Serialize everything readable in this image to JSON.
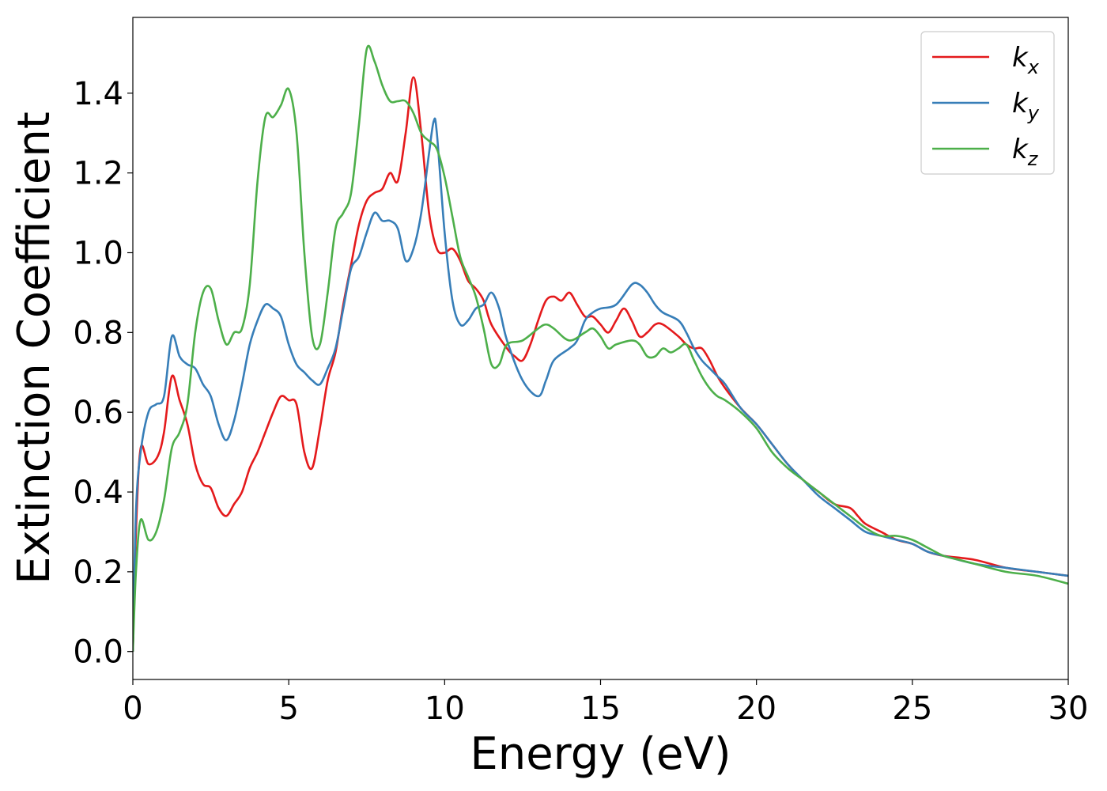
{
  "chart_data": {
    "type": "line",
    "title": "",
    "xlabel": "Energy (eV)",
    "ylabel": "Extinction Coefficient",
    "xlim": [
      0,
      30
    ],
    "ylim": [
      -0.07,
      1.59
    ],
    "xticks": [
      0,
      5,
      10,
      15,
      20,
      25,
      30
    ],
    "yticks": [
      0.0,
      0.2,
      0.4,
      0.6,
      0.8,
      1.0,
      1.2,
      1.4
    ],
    "xtick_labels": [
      "0",
      "5",
      "10",
      "15",
      "20",
      "25",
      "30"
    ],
    "ytick_labels": [
      "0.0",
      "0.2",
      "0.4",
      "0.6",
      "0.8",
      "1.0",
      "1.2",
      "1.4"
    ],
    "grid": false,
    "legend_position": "top-right",
    "series": [
      {
        "name": "k_x",
        "label_base": "k",
        "label_sub": "x",
        "color": "#e41a1c",
        "points": [
          [
            0,
            0
          ],
          [
            0.1,
            0.3
          ],
          [
            0.25,
            0.51
          ],
          [
            0.5,
            0.47
          ],
          [
            0.8,
            0.49
          ],
          [
            1.0,
            0.55
          ],
          [
            1.25,
            0.69
          ],
          [
            1.5,
            0.63
          ],
          [
            1.75,
            0.57
          ],
          [
            2.0,
            0.47
          ],
          [
            2.25,
            0.42
          ],
          [
            2.5,
            0.41
          ],
          [
            2.75,
            0.36
          ],
          [
            3.0,
            0.34
          ],
          [
            3.25,
            0.37
          ],
          [
            3.5,
            0.4
          ],
          [
            3.75,
            0.46
          ],
          [
            4.0,
            0.5
          ],
          [
            4.25,
            0.55
          ],
          [
            4.5,
            0.6
          ],
          [
            4.75,
            0.64
          ],
          [
            5.0,
            0.63
          ],
          [
            5.25,
            0.62
          ],
          [
            5.5,
            0.5
          ],
          [
            5.75,
            0.46
          ],
          [
            6.0,
            0.56
          ],
          [
            6.25,
            0.68
          ],
          [
            6.5,
            0.75
          ],
          [
            6.75,
            0.87
          ],
          [
            7.0,
            0.97
          ],
          [
            7.25,
            1.07
          ],
          [
            7.5,
            1.13
          ],
          [
            7.75,
            1.15
          ],
          [
            8.0,
            1.16
          ],
          [
            8.25,
            1.2
          ],
          [
            8.5,
            1.18
          ],
          [
            8.75,
            1.3
          ],
          [
            9.0,
            1.44
          ],
          [
            9.25,
            1.3
          ],
          [
            9.5,
            1.1
          ],
          [
            9.75,
            1.01
          ],
          [
            10.0,
            1.0
          ],
          [
            10.25,
            1.01
          ],
          [
            10.5,
            0.98
          ],
          [
            10.75,
            0.93
          ],
          [
            11.0,
            0.91
          ],
          [
            11.25,
            0.88
          ],
          [
            11.5,
            0.82
          ],
          [
            12.0,
            0.76
          ],
          [
            12.25,
            0.74
          ],
          [
            12.5,
            0.73
          ],
          [
            12.75,
            0.77
          ],
          [
            13.0,
            0.83
          ],
          [
            13.25,
            0.88
          ],
          [
            13.5,
            0.89
          ],
          [
            13.75,
            0.88
          ],
          [
            14.0,
            0.9
          ],
          [
            14.25,
            0.87
          ],
          [
            14.5,
            0.84
          ],
          [
            14.75,
            0.84
          ],
          [
            15.0,
            0.82
          ],
          [
            15.25,
            0.8
          ],
          [
            15.5,
            0.83
          ],
          [
            15.75,
            0.86
          ],
          [
            16.0,
            0.83
          ],
          [
            16.25,
            0.79
          ],
          [
            16.5,
            0.8
          ],
          [
            16.75,
            0.82
          ],
          [
            17.0,
            0.82
          ],
          [
            17.5,
            0.79
          ],
          [
            17.75,
            0.77
          ],
          [
            18.0,
            0.76
          ],
          [
            18.25,
            0.76
          ],
          [
            18.5,
            0.73
          ],
          [
            18.75,
            0.69
          ],
          [
            19.0,
            0.66
          ],
          [
            19.5,
            0.61
          ],
          [
            20.0,
            0.57
          ],
          [
            20.5,
            0.52
          ],
          [
            21.0,
            0.47
          ],
          [
            21.5,
            0.43
          ],
          [
            22.0,
            0.4
          ],
          [
            22.5,
            0.37
          ],
          [
            23.0,
            0.36
          ],
          [
            23.25,
            0.34
          ],
          [
            23.5,
            0.32
          ],
          [
            24.0,
            0.3
          ],
          [
            24.5,
            0.28
          ],
          [
            25.0,
            0.27
          ],
          [
            25.5,
            0.25
          ],
          [
            26.0,
            0.24
          ],
          [
            27.0,
            0.23
          ],
          [
            28.0,
            0.21
          ],
          [
            29.0,
            0.2
          ],
          [
            30.0,
            0.19
          ]
        ]
      },
      {
        "name": "k_y",
        "label_base": "k",
        "label_sub": "y",
        "color": "#377eb8",
        "points": [
          [
            0,
            0
          ],
          [
            0.1,
            0.35
          ],
          [
            0.25,
            0.5
          ],
          [
            0.5,
            0.6
          ],
          [
            0.75,
            0.62
          ],
          [
            1.0,
            0.64
          ],
          [
            1.25,
            0.79
          ],
          [
            1.5,
            0.74
          ],
          [
            1.75,
            0.72
          ],
          [
            2.0,
            0.71
          ],
          [
            2.25,
            0.67
          ],
          [
            2.5,
            0.64
          ],
          [
            2.75,
            0.57
          ],
          [
            3.0,
            0.53
          ],
          [
            3.25,
            0.58
          ],
          [
            3.5,
            0.67
          ],
          [
            3.75,
            0.77
          ],
          [
            4.0,
            0.83
          ],
          [
            4.25,
            0.87
          ],
          [
            4.5,
            0.86
          ],
          [
            4.75,
            0.84
          ],
          [
            5.0,
            0.77
          ],
          [
            5.25,
            0.72
          ],
          [
            5.5,
            0.7
          ],
          [
            5.75,
            0.68
          ],
          [
            6.0,
            0.67
          ],
          [
            6.25,
            0.71
          ],
          [
            6.5,
            0.76
          ],
          [
            6.75,
            0.86
          ],
          [
            7.0,
            0.96
          ],
          [
            7.25,
            0.99
          ],
          [
            7.5,
            1.05
          ],
          [
            7.75,
            1.1
          ],
          [
            8.0,
            1.08
          ],
          [
            8.25,
            1.08
          ],
          [
            8.5,
            1.06
          ],
          [
            8.75,
            0.98
          ],
          [
            9.0,
            1.01
          ],
          [
            9.25,
            1.1
          ],
          [
            9.5,
            1.25
          ],
          [
            9.65,
            1.33
          ],
          [
            9.75,
            1.3
          ],
          [
            10.0,
            1.05
          ],
          [
            10.25,
            0.88
          ],
          [
            10.5,
            0.82
          ],
          [
            10.75,
            0.83
          ],
          [
            11.0,
            0.86
          ],
          [
            11.25,
            0.87
          ],
          [
            11.5,
            0.9
          ],
          [
            11.75,
            0.86
          ],
          [
            12.0,
            0.78
          ],
          [
            12.5,
            0.68
          ],
          [
            13.0,
            0.64
          ],
          [
            13.25,
            0.68
          ],
          [
            13.5,
            0.73
          ],
          [
            14.0,
            0.76
          ],
          [
            14.25,
            0.78
          ],
          [
            14.5,
            0.83
          ],
          [
            14.75,
            0.85
          ],
          [
            15.0,
            0.86
          ],
          [
            15.5,
            0.87
          ],
          [
            16.0,
            0.92
          ],
          [
            16.25,
            0.92
          ],
          [
            16.5,
            0.9
          ],
          [
            16.75,
            0.87
          ],
          [
            17.0,
            0.85
          ],
          [
            17.5,
            0.83
          ],
          [
            17.75,
            0.8
          ],
          [
            18.0,
            0.76
          ],
          [
            18.25,
            0.73
          ],
          [
            18.5,
            0.71
          ],
          [
            18.75,
            0.69
          ],
          [
            19.0,
            0.67
          ],
          [
            19.5,
            0.61
          ],
          [
            20.0,
            0.57
          ],
          [
            20.5,
            0.52
          ],
          [
            21.0,
            0.47
          ],
          [
            21.5,
            0.43
          ],
          [
            22.0,
            0.39
          ],
          [
            22.5,
            0.36
          ],
          [
            23.0,
            0.33
          ],
          [
            23.5,
            0.3
          ],
          [
            24.0,
            0.29
          ],
          [
            24.5,
            0.28
          ],
          [
            25.0,
            0.27
          ],
          [
            25.5,
            0.25
          ],
          [
            26.0,
            0.24
          ],
          [
            27.0,
            0.22
          ],
          [
            28.0,
            0.21
          ],
          [
            29.0,
            0.2
          ],
          [
            30.0,
            0.19
          ]
        ]
      },
      {
        "name": "k_z",
        "label_base": "k",
        "label_sub": "z",
        "color": "#4daf4a",
        "points": [
          [
            0,
            0
          ],
          [
            0.1,
            0.2
          ],
          [
            0.25,
            0.33
          ],
          [
            0.5,
            0.28
          ],
          [
            0.75,
            0.3
          ],
          [
            1.0,
            0.38
          ],
          [
            1.25,
            0.51
          ],
          [
            1.5,
            0.55
          ],
          [
            1.75,
            0.62
          ],
          [
            2.0,
            0.8
          ],
          [
            2.25,
            0.9
          ],
          [
            2.5,
            0.91
          ],
          [
            2.75,
            0.83
          ],
          [
            3.0,
            0.77
          ],
          [
            3.25,
            0.8
          ],
          [
            3.5,
            0.81
          ],
          [
            3.75,
            0.92
          ],
          [
            4.0,
            1.18
          ],
          [
            4.25,
            1.34
          ],
          [
            4.5,
            1.34
          ],
          [
            4.75,
            1.37
          ],
          [
            5.0,
            1.41
          ],
          [
            5.25,
            1.3
          ],
          [
            5.5,
            1.0
          ],
          [
            5.75,
            0.79
          ],
          [
            6.0,
            0.77
          ],
          [
            6.25,
            0.9
          ],
          [
            6.5,
            1.06
          ],
          [
            6.75,
            1.1
          ],
          [
            7.0,
            1.15
          ],
          [
            7.25,
            1.32
          ],
          [
            7.5,
            1.51
          ],
          [
            7.75,
            1.48
          ],
          [
            8.0,
            1.42
          ],
          [
            8.25,
            1.38
          ],
          [
            8.5,
            1.38
          ],
          [
            8.75,
            1.38
          ],
          [
            9.0,
            1.35
          ],
          [
            9.25,
            1.3
          ],
          [
            9.5,
            1.28
          ],
          [
            9.75,
            1.26
          ],
          [
            10.0,
            1.19
          ],
          [
            10.25,
            1.09
          ],
          [
            10.5,
            0.99
          ],
          [
            10.75,
            0.94
          ],
          [
            11.0,
            0.89
          ],
          [
            11.25,
            0.81
          ],
          [
            11.5,
            0.72
          ],
          [
            11.75,
            0.72
          ],
          [
            12.0,
            0.77
          ],
          [
            12.5,
            0.78
          ],
          [
            13.0,
            0.81
          ],
          [
            13.25,
            0.82
          ],
          [
            13.5,
            0.81
          ],
          [
            14.0,
            0.78
          ],
          [
            14.5,
            0.8
          ],
          [
            14.75,
            0.81
          ],
          [
            15.0,
            0.79
          ],
          [
            15.25,
            0.76
          ],
          [
            15.5,
            0.77
          ],
          [
            16.0,
            0.78
          ],
          [
            16.25,
            0.77
          ],
          [
            16.5,
            0.74
          ],
          [
            16.75,
            0.74
          ],
          [
            17.0,
            0.76
          ],
          [
            17.25,
            0.75
          ],
          [
            17.5,
            0.76
          ],
          [
            17.75,
            0.77
          ],
          [
            18.0,
            0.73
          ],
          [
            18.25,
            0.69
          ],
          [
            18.5,
            0.66
          ],
          [
            18.75,
            0.64
          ],
          [
            19.0,
            0.63
          ],
          [
            19.5,
            0.6
          ],
          [
            20.0,
            0.56
          ],
          [
            20.5,
            0.5
          ],
          [
            21.0,
            0.46
          ],
          [
            21.5,
            0.43
          ],
          [
            22.0,
            0.4
          ],
          [
            22.5,
            0.37
          ],
          [
            23.0,
            0.34
          ],
          [
            23.5,
            0.31
          ],
          [
            24.0,
            0.29
          ],
          [
            24.5,
            0.29
          ],
          [
            25.0,
            0.28
          ],
          [
            25.5,
            0.26
          ],
          [
            26.0,
            0.24
          ],
          [
            26.5,
            0.23
          ],
          [
            27.0,
            0.22
          ],
          [
            28.0,
            0.2
          ],
          [
            29.0,
            0.19
          ],
          [
            30.0,
            0.17
          ]
        ]
      }
    ]
  }
}
